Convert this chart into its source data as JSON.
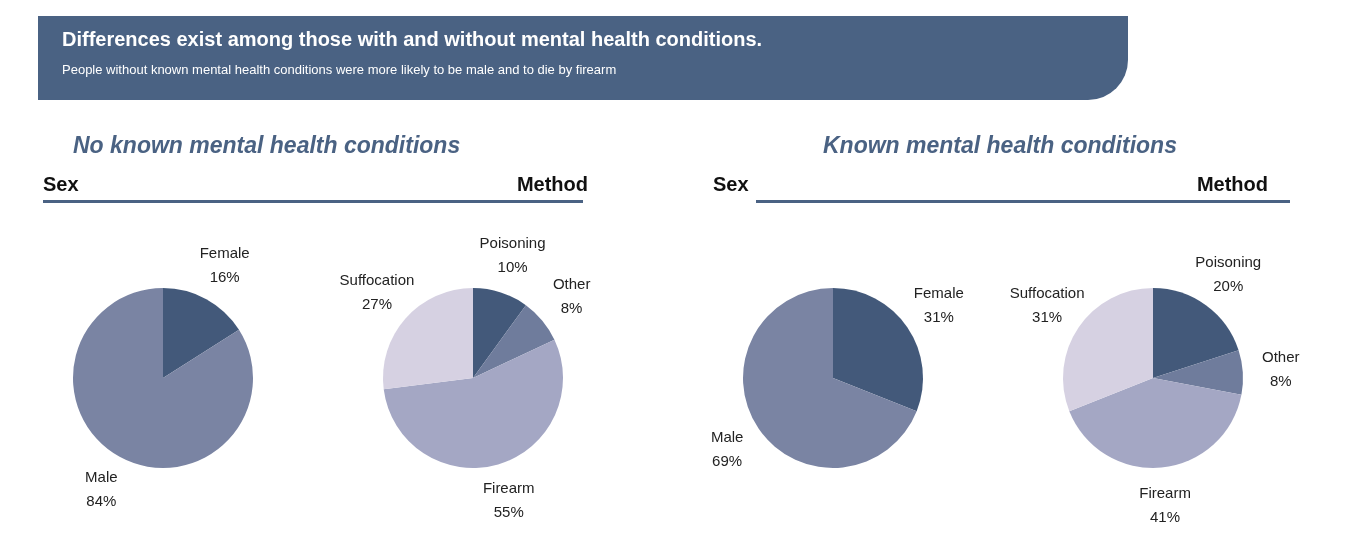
{
  "chart_data": [
    {
      "type": "other",
      "title": "Differences exist among those with and without mental health conditions.",
      "subtitle": "People without known mental health conditions were more likely to be male and to die by firearm"
    },
    {
      "type": "pie",
      "subtitle": "No known mental health conditions",
      "title": "Sex",
      "categories": [
        "Female",
        "Male"
      ],
      "values": [
        16,
        84
      ],
      "value_labels": [
        "16%",
        "84%"
      ],
      "colors": [
        "#43597a",
        "#7a84a3"
      ]
    },
    {
      "type": "pie",
      "title": "Method",
      "categories": [
        "Poisoning",
        "Other",
        "Firearm",
        "Suffocation"
      ],
      "values": [
        10,
        8,
        55,
        27
      ],
      "value_labels": [
        "10%",
        "8%",
        "55%",
        "27%"
      ],
      "colors": [
        "#43597a",
        "#6f7c9c",
        "#a4a7c4",
        "#d6d1e2"
      ]
    },
    {
      "type": "pie",
      "subtitle": "Known mental health conditions",
      "title": "Sex",
      "categories": [
        "Female",
        "Male"
      ],
      "values": [
        31,
        69
      ],
      "value_labels": [
        "31%",
        "69%"
      ],
      "colors": [
        "#43597a",
        "#7a84a3"
      ]
    },
    {
      "type": "pie",
      "title": "Method",
      "categories": [
        "Poisoning",
        "Other",
        "Firearm",
        "Suffocation"
      ],
      "values": [
        20,
        8,
        41,
        31
      ],
      "value_labels": [
        "20%",
        "8%",
        "41%",
        "31%"
      ],
      "colors": [
        "#43597a",
        "#6f7c9c",
        "#a4a7c4",
        "#d6d1e2"
      ]
    }
  ]
}
